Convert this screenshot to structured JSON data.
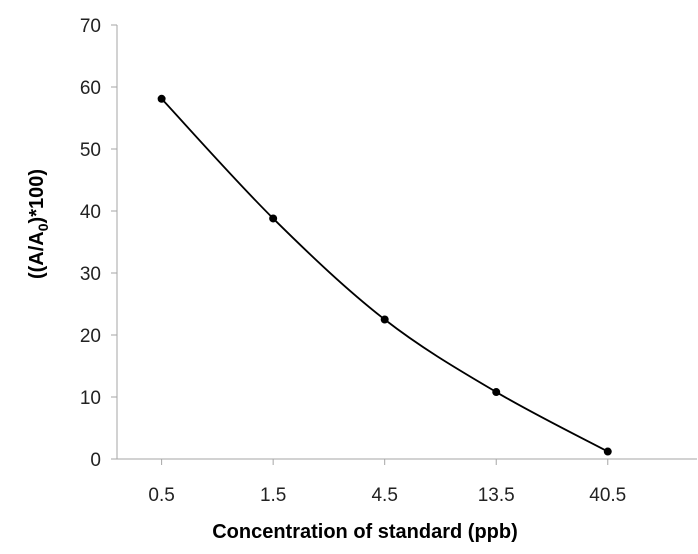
{
  "chart_data": {
    "type": "line",
    "smooth": true,
    "title": "",
    "xlabel": "Concentration of standard (ppb)",
    "ylabel": {
      "prefix": "((A/A",
      "subscript": "0",
      "suffix": ")*100)"
    },
    "categories": [
      "0.5",
      "1.5",
      "4.5",
      "13.5",
      "40.5"
    ],
    "series": [
      {
        "values": [
          58.1,
          38.8,
          22.5,
          10.8,
          1.2
        ]
      }
    ],
    "ylim": [
      0,
      70
    ],
    "yticks": [
      "0",
      "10",
      "20",
      "30",
      "40",
      "50",
      "60",
      "70"
    ],
    "grid": false,
    "legend": "none",
    "colors": {
      "line": "#000000",
      "marker": "#000000",
      "axis": "#a6a6a6"
    }
  }
}
